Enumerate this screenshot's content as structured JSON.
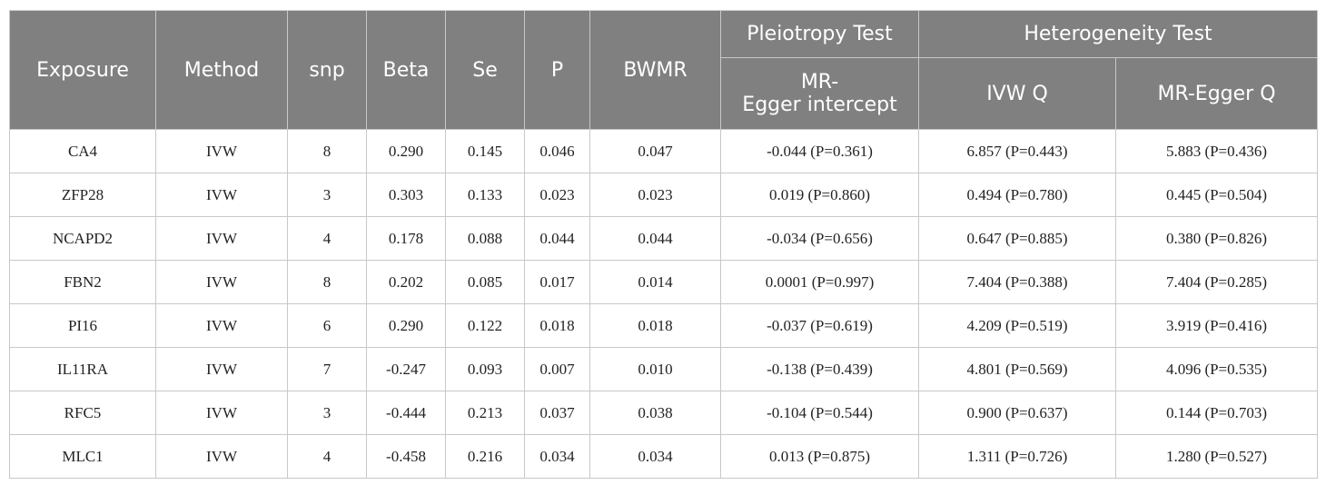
{
  "header": {
    "exposure": "Exposure",
    "method": "Method",
    "snp": "snp",
    "beta": "Beta",
    "se": "Se",
    "p": "P",
    "bwmr": "BWMR",
    "pleiotropy_group": "Pleiotropy Test",
    "heterogeneity_group": "Heterogeneity Test",
    "mr_egger_intercept_line1": "MR-",
    "mr_egger_intercept_line2": "Egger intercept",
    "ivw_q": "IVW Q",
    "mr_egger_q": "MR-Egger Q"
  },
  "rows": [
    {
      "exposure": "CA4",
      "method": "IVW",
      "snp": "8",
      "beta": "0.290",
      "se": "0.145",
      "p": "0.046",
      "bwmr": "0.047",
      "intercept": "-0.044 (P=0.361)",
      "ivw_q": "6.857 (P=0.443)",
      "egger_q": "5.883 (P=0.436)"
    },
    {
      "exposure": "ZFP28",
      "method": "IVW",
      "snp": "3",
      "beta": "0.303",
      "se": "0.133",
      "p": "0.023",
      "bwmr": "0.023",
      "intercept": "0.019 (P=0.860)",
      "ivw_q": "0.494 (P=0.780)",
      "egger_q": "0.445 (P=0.504)"
    },
    {
      "exposure": "NCAPD2",
      "method": "IVW",
      "snp": "4",
      "beta": "0.178",
      "se": "0.088",
      "p": "0.044",
      "bwmr": "0.044",
      "intercept": "-0.034 (P=0.656)",
      "ivw_q": "0.647 (P=0.885)",
      "egger_q": "0.380 (P=0.826)"
    },
    {
      "exposure": "FBN2",
      "method": "IVW",
      "snp": "8",
      "beta": "0.202",
      "se": "0.085",
      "p": "0.017",
      "bwmr": "0.014",
      "intercept": "0.0001 (P=0.997)",
      "ivw_q": "7.404 (P=0.388)",
      "egger_q": "7.404 (P=0.285)"
    },
    {
      "exposure": "PI16",
      "method": "IVW",
      "snp": "6",
      "beta": "0.290",
      "se": "0.122",
      "p": "0.018",
      "bwmr": "0.018",
      "intercept": "-0.037 (P=0.619)",
      "ivw_q": "4.209 (P=0.519)",
      "egger_q": "3.919 (P=0.416)"
    },
    {
      "exposure": "IL11RA",
      "method": "IVW",
      "snp": "7",
      "beta": "-0.247",
      "se": "0.093",
      "p": "0.007",
      "bwmr": "0.010",
      "intercept": "-0.138 (P=0.439)",
      "ivw_q": "4.801 (P=0.569)",
      "egger_q": "4.096 (P=0.535)"
    },
    {
      "exposure": "RFC5",
      "method": "IVW",
      "snp": "3",
      "beta": "-0.444",
      "se": "0.213",
      "p": "0.037",
      "bwmr": "0.038",
      "intercept": "-0.104 (P=0.544)",
      "ivw_q": "0.900 (P=0.637)",
      "egger_q": "0.144 (P=0.703)"
    },
    {
      "exposure": "MLC1",
      "method": "IVW",
      "snp": "4",
      "beta": "-0.458",
      "se": "0.216",
      "p": "0.034",
      "bwmr": "0.034",
      "intercept": "0.013 (P=0.875)",
      "ivw_q": "1.311 (P=0.726)",
      "egger_q": "1.280 (P=0.527)"
    }
  ]
}
